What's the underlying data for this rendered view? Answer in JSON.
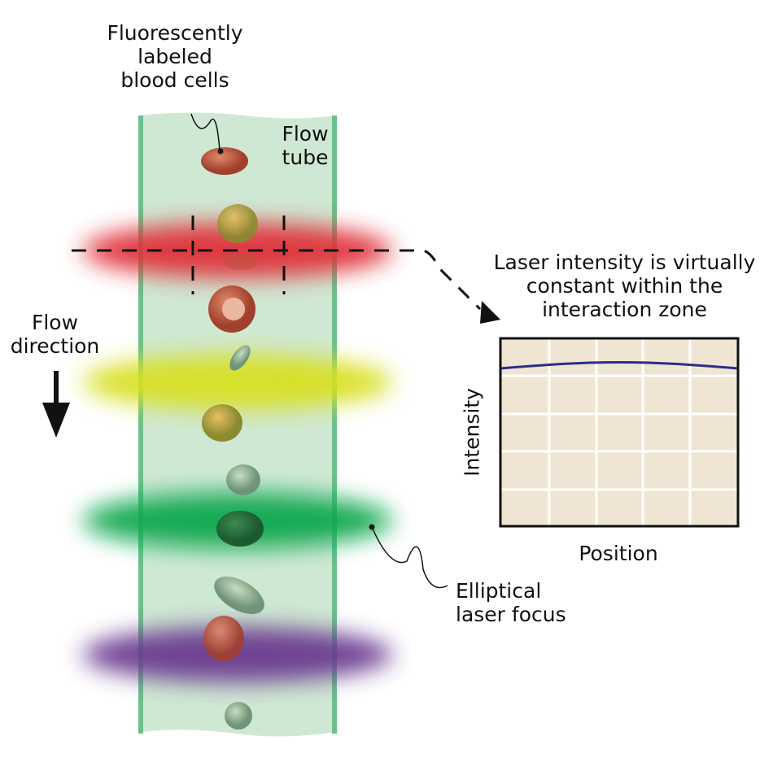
{
  "labels": {
    "cells": "Fluorescently\nlabeled\nblood cells",
    "tube": "Flow\ntube",
    "flow_direction": "Flow\ndirection",
    "note": "Laser intensity is virtually\nconstant within the\ninteraction zone",
    "focus": "Elliptical\nlaser focus"
  },
  "lasers": [
    {
      "name": "red",
      "color": "#e0303a"
    },
    {
      "name": "yellow",
      "color": "#d8e020"
    },
    {
      "name": "green",
      "color": "#10a850"
    },
    {
      "name": "violet",
      "color": "#6a3a90"
    }
  ],
  "colors": {
    "tube_fill": "#cfe8d3",
    "tube_wall": "#6cc08e",
    "plot_bg": "#f0e4d2",
    "curve": "#2a2f8a"
  },
  "chart_data": {
    "type": "line",
    "xlabel": "Position",
    "ylabel": "Intensity",
    "grid": true,
    "xlim": [
      0,
      1
    ],
    "ylim": [
      0,
      1
    ],
    "x": [
      0,
      0.25,
      0.5,
      0.75,
      1
    ],
    "y": [
      0.84,
      0.865,
      0.875,
      0.865,
      0.84
    ]
  }
}
